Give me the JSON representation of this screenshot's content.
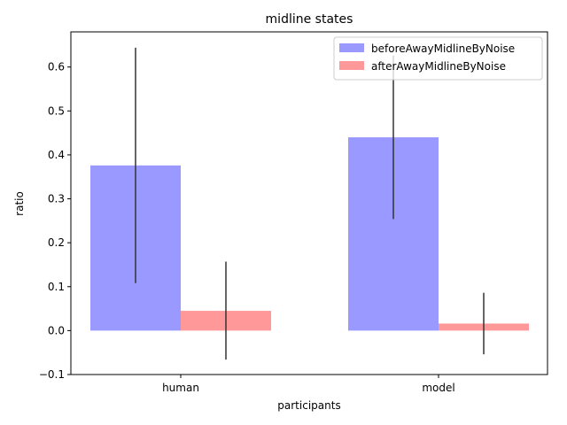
{
  "chart_data": {
    "type": "bar",
    "title": "midline states",
    "xlabel": "participants",
    "ylabel": "ratio",
    "categories": [
      "human",
      "model"
    ],
    "ylim": [
      -0.1,
      0.68
    ],
    "yticks": [
      -0.1,
      0.0,
      0.1,
      0.2,
      0.3,
      0.4,
      0.5,
      0.6
    ],
    "ytick_labels": [
      "−0.1",
      "0.0",
      "0.1",
      "0.2",
      "0.3",
      "0.4",
      "0.5",
      "0.6"
    ],
    "grid": false,
    "legend_position": "top-right",
    "series": [
      {
        "name": "beforeAwayMidlineByNoise",
        "color": "#9999ff",
        "values": [
          0.376,
          0.44
        ],
        "error_low": [
          0.108,
          0.254
        ],
        "error_high": [
          0.644,
          0.626
        ]
      },
      {
        "name": "afterAwayMidlineByNoise",
        "color": "#ff9999",
        "values": [
          0.045,
          0.016
        ],
        "error_low": [
          -0.066,
          -0.054
        ],
        "error_high": [
          0.157,
          0.086
        ]
      }
    ]
  }
}
